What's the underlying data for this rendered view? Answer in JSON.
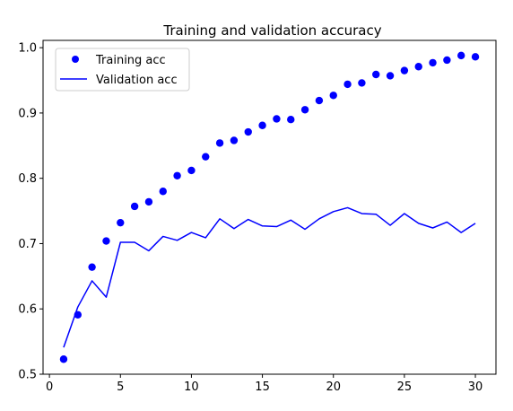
{
  "chart_data": {
    "type": "line",
    "title": "Training and validation accuracy",
    "xlabel": "",
    "ylabel": "",
    "xlim": [
      -0.45,
      31.45
    ],
    "ylim": [
      0.5,
      1.0112
    ],
    "x_ticks": [
      "0",
      "5",
      "10",
      "15",
      "20",
      "25",
      "30"
    ],
    "x_tick_values": [
      0,
      5,
      10,
      15,
      20,
      25,
      30
    ],
    "y_ticks": [
      "0.5",
      "0.6",
      "0.7",
      "0.8",
      "0.9",
      "1.0"
    ],
    "y_tick_values": [
      0.5,
      0.6,
      0.7,
      0.8,
      0.9,
      1.0
    ],
    "grid": false,
    "legend_position": "top-left",
    "x": [
      1,
      2,
      3,
      4,
      5,
      6,
      7,
      8,
      9,
      10,
      11,
      12,
      13,
      14,
      15,
      16,
      17,
      18,
      19,
      20,
      21,
      22,
      23,
      24,
      25,
      26,
      27,
      28,
      29,
      30
    ],
    "series": [
      {
        "name": "Training acc",
        "style": "markers",
        "color": "#0000ff",
        "values": [
          0.523,
          0.591,
          0.664,
          0.704,
          0.732,
          0.757,
          0.764,
          0.78,
          0.804,
          0.812,
          0.833,
          0.854,
          0.858,
          0.871,
          0.881,
          0.891,
          0.89,
          0.905,
          0.919,
          0.927,
          0.944,
          0.946,
          0.959,
          0.957,
          0.965,
          0.971,
          0.977,
          0.981,
          0.988,
          0.986
        ]
      },
      {
        "name": "Validation acc",
        "style": "line",
        "color": "#0000ff",
        "values": [
          0.541,
          0.603,
          0.643,
          0.618,
          0.702,
          0.702,
          0.689,
          0.711,
          0.705,
          0.717,
          0.709,
          0.738,
          0.723,
          0.737,
          0.727,
          0.726,
          0.736,
          0.722,
          0.738,
          0.749,
          0.755,
          0.746,
          0.745,
          0.728,
          0.746,
          0.731,
          0.724,
          0.733,
          0.717,
          0.731
        ]
      }
    ]
  }
}
